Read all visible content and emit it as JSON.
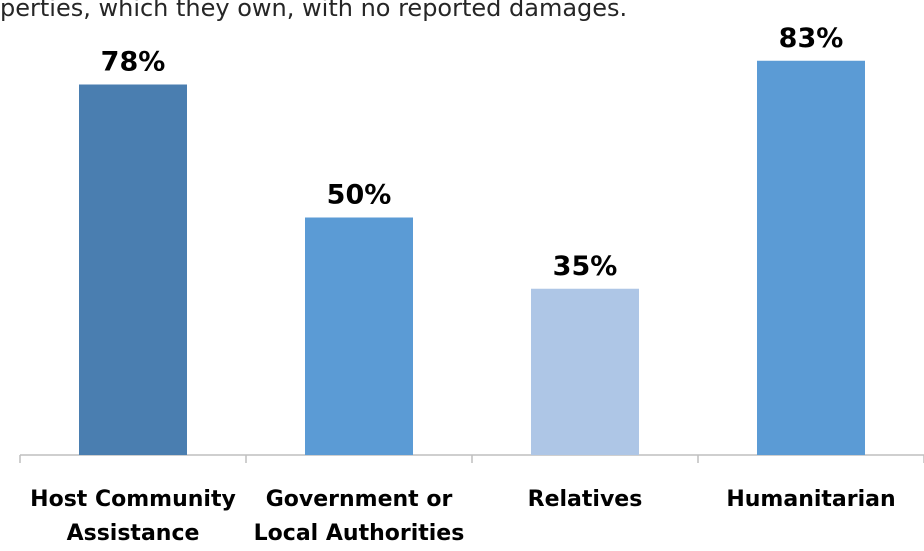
{
  "caption": "perties, which they own, with no reported damages.",
  "chart_data": {
    "type": "bar",
    "categories": [
      [
        "Host Community",
        "Assistance"
      ],
      [
        "Government or",
        "Local Authorities"
      ],
      [
        "Relatives"
      ],
      [
        "Humanitarian"
      ]
    ],
    "values": [
      78,
      50,
      35,
      83
    ],
    "data_labels": [
      "78%",
      "50%",
      "35%",
      "83%"
    ],
    "colors": [
      "#4a7eb0",
      "#5b9bd5",
      "#aec6e6",
      "#5b9bd5"
    ],
    "ylim": [
      0,
      100
    ],
    "title": "",
    "xlabel": "",
    "ylabel": "",
    "grid": false,
    "legend": "none"
  }
}
